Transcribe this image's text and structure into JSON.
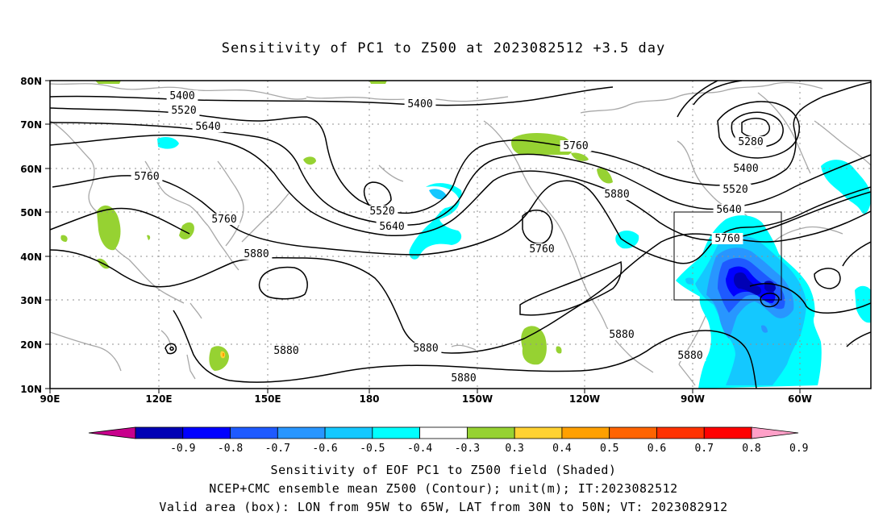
{
  "title": "Sensitivity of PC1 to Z500 at 2023082512 +3.5 day",
  "captions": [
    "Sensitivity of EOF PC1 to Z500 field (Shaded)",
    "NCEP+CMC ensemble mean Z500 (Contour); unit(m); IT:2023082512",
    "Valid area (box): LON from 95W to 65W, LAT from 30N to 50N; VT: 2023082912"
  ],
  "map": {
    "lon_ticks": [
      "90E",
      "120E",
      "150E",
      "180",
      "150W",
      "120W",
      "90W",
      "60W"
    ],
    "lat_ticks": [
      "10N",
      "20N",
      "30N",
      "40N",
      "50N",
      "60N",
      "70N",
      "80N"
    ],
    "contour_labels": [
      "5400",
      "5400",
      "5520",
      "5640",
      "5760",
      "5760",
      "5880",
      "5520",
      "5640",
      "5760",
      "5760",
      "5880",
      "5280",
      "5400",
      "5520",
      "5640",
      "5760",
      "5880",
      "5880",
      "5880",
      "5880",
      "5880"
    ],
    "box": {
      "lon_from": "95W",
      "lon_to": "65W",
      "lat_from": "30N",
      "lat_to": "50N"
    }
  },
  "colorbar": {
    "labels": [
      "-0.9",
      "-0.8",
      "-0.7",
      "-0.6",
      "-0.5",
      "-0.4",
      "-0.3",
      "0.3",
      "0.4",
      "0.5",
      "0.6",
      "0.7",
      "0.8",
      "0.9"
    ],
    "colors": [
      "#c8008c",
      "#0000b4",
      "#0000ff",
      "#1e5aff",
      "#2896ff",
      "#14c8ff",
      "#00ffff",
      "#ffffff",
      "#96d232",
      "#ffd232",
      "#ffa000",
      "#ff6400",
      "#ff3200",
      "#ff0000",
      "#ffa0c8"
    ]
  }
}
